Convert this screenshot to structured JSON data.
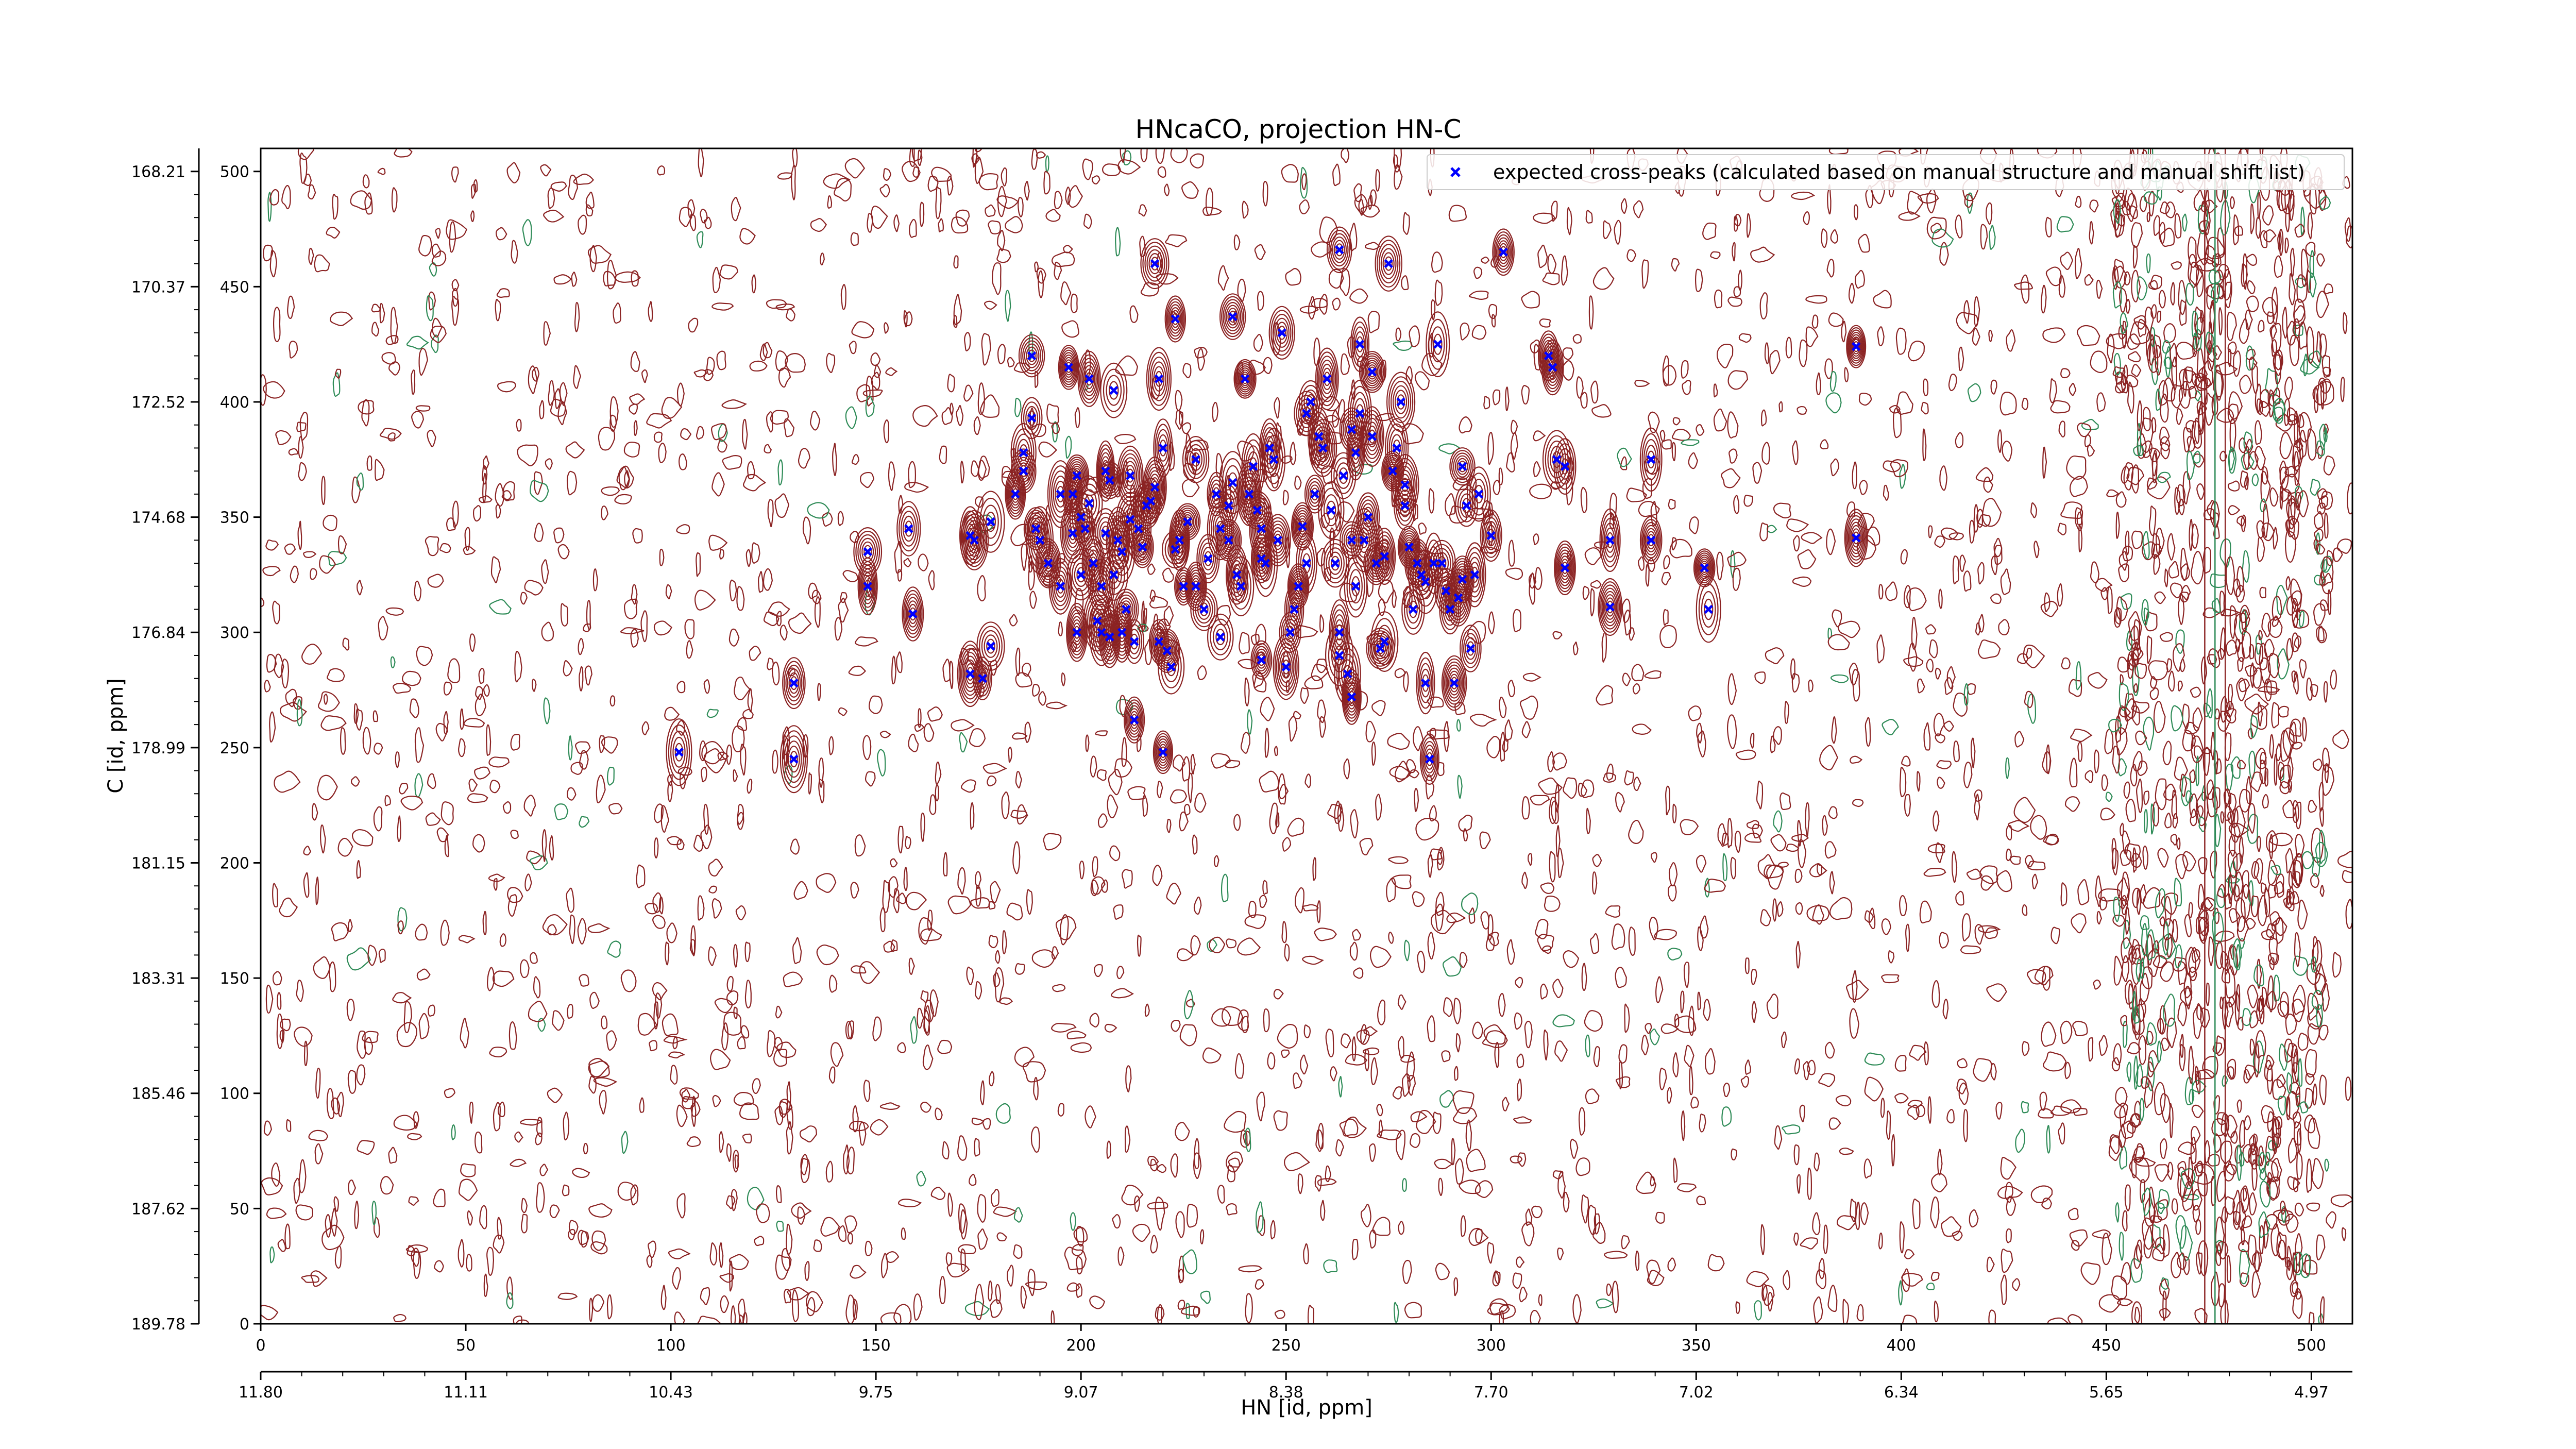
{
  "chart_data": {
    "type": "scatter",
    "title": "HNcaCO, projection HN-C",
    "xlabel": "HN [id, ppm]",
    "ylabel": "C [id, ppm]",
    "xlim": [
      0,
      510
    ],
    "ylim": [
      0,
      510
    ],
    "x_ticks_index": [
      0,
      50,
      100,
      150,
      200,
      250,
      300,
      350,
      400,
      450,
      500
    ],
    "y_ticks_index": [
      0,
      50,
      100,
      150,
      200,
      250,
      300,
      350,
      400,
      450,
      500
    ],
    "x_ticks_ppm": [
      "11.80",
      "11.11",
      "10.43",
      "9.75",
      "9.07",
      "8.38",
      "7.70",
      "7.02",
      "6.34",
      "5.65",
      "4.97"
    ],
    "y_ticks_ppm": [
      "189.78",
      "187.62",
      "185.46",
      "183.31",
      "181.15",
      "178.99",
      "176.84",
      "174.68",
      "172.52",
      "170.37",
      "168.21"
    ],
    "legend": {
      "position": "top-right",
      "entries": [
        {
          "label": "expected cross-peaks (calculated based on manual structure and manual shift list)",
          "color": "#0000ff",
          "marker": "x"
        }
      ]
    },
    "colors": {
      "positive_contours": "#8b2323",
      "negative_contours": "#2e8b57",
      "markers": "#0000ff"
    },
    "series": [
      {
        "label": "expected cross-peaks (calculated based on manual structure and manual shift list)",
        "points": [
          [
            102,
            248
          ],
          [
            130,
            245
          ],
          [
            130,
            278
          ],
          [
            148,
            335
          ],
          [
            148,
            320
          ],
          [
            158,
            345
          ],
          [
            159,
            308
          ],
          [
            173,
            342
          ],
          [
            174,
            340
          ],
          [
            173,
            282
          ],
          [
            176,
            280
          ],
          [
            178,
            294
          ],
          [
            178,
            348
          ],
          [
            184,
            360
          ],
          [
            186,
            370
          ],
          [
            186,
            378
          ],
          [
            188,
            420
          ],
          [
            188,
            393
          ],
          [
            189,
            345
          ],
          [
            190,
            340
          ],
          [
            192,
            330
          ],
          [
            195,
            360
          ],
          [
            195,
            320
          ],
          [
            197,
            415
          ],
          [
            198,
            343
          ],
          [
            198,
            360
          ],
          [
            199,
            368
          ],
          [
            199,
            300
          ],
          [
            200,
            350
          ],
          [
            200,
            325
          ],
          [
            201,
            345
          ],
          [
            202,
            356
          ],
          [
            202,
            410
          ],
          [
            203,
            330
          ],
          [
            204,
            305
          ],
          [
            205,
            320
          ],
          [
            206,
            343
          ],
          [
            206,
            370
          ],
          [
            207,
            366
          ],
          [
            207,
            298
          ],
          [
            208,
            325
          ],
          [
            208,
            405
          ],
          [
            209,
            340
          ],
          [
            210,
            335
          ],
          [
            211,
            310
          ],
          [
            212,
            349
          ],
          [
            212,
            368
          ],
          [
            213,
            296
          ],
          [
            213,
            262
          ],
          [
            214,
            345
          ],
          [
            215,
            337
          ],
          [
            216,
            355
          ],
          [
            217,
            357
          ],
          [
            218,
            363
          ],
          [
            218,
            460
          ],
          [
            219,
            410
          ],
          [
            220,
            380
          ],
          [
            220,
            248
          ],
          [
            221,
            292
          ],
          [
            222,
            285
          ],
          [
            223,
            336
          ],
          [
            224,
            340
          ],
          [
            225,
            320
          ],
          [
            226,
            348
          ],
          [
            228,
            375
          ],
          [
            230,
            310
          ],
          [
            231,
            332
          ],
          [
            233,
            360
          ],
          [
            234,
            345
          ],
          [
            236,
            355
          ],
          [
            236,
            340
          ],
          [
            237,
            437
          ],
          [
            237,
            365
          ],
          [
            238,
            325
          ],
          [
            239,
            320
          ],
          [
            240,
            410
          ],
          [
            241,
            360
          ],
          [
            242,
            372
          ],
          [
            243,
            353
          ],
          [
            244,
            345
          ],
          [
            244,
            288
          ],
          [
            245,
            330
          ],
          [
            246,
            380
          ],
          [
            247,
            375
          ],
          [
            248,
            340
          ],
          [
            249,
            430
          ],
          [
            250,
            285
          ],
          [
            251,
            300
          ],
          [
            252,
            310
          ],
          [
            253,
            320
          ],
          [
            254,
            346
          ],
          [
            255,
            395
          ],
          [
            256,
            400
          ],
          [
            257,
            360
          ],
          [
            258,
            385
          ],
          [
            259,
            380
          ],
          [
            260,
            410
          ],
          [
            261,
            353
          ],
          [
            262,
            330
          ],
          [
            263,
            300
          ],
          [
            263,
            290
          ],
          [
            264,
            368
          ],
          [
            265,
            282
          ],
          [
            266,
            340
          ],
          [
            266,
            272
          ],
          [
            267,
            320
          ],
          [
            268,
            395
          ],
          [
            268,
            425
          ],
          [
            269,
            340
          ],
          [
            270,
            350
          ],
          [
            271,
            385
          ],
          [
            272,
            330
          ],
          [
            273,
            293
          ],
          [
            274,
            333
          ],
          [
            275,
            460
          ],
          [
            276,
            370
          ],
          [
            277,
            380
          ],
          [
            278,
            400
          ],
          [
            279,
            355
          ],
          [
            280,
            337
          ],
          [
            281,
            310
          ],
          [
            282,
            330
          ],
          [
            283,
            325
          ],
          [
            284,
            278
          ],
          [
            285,
            245
          ],
          [
            286,
            330
          ],
          [
            287,
            425
          ],
          [
            288,
            330
          ],
          [
            289,
            318
          ],
          [
            290,
            310
          ],
          [
            291,
            278
          ],
          [
            292,
            315
          ],
          [
            293,
            323
          ],
          [
            294,
            355
          ],
          [
            295,
            293
          ],
          [
            296,
            325
          ],
          [
            300,
            342
          ],
          [
            303,
            465
          ],
          [
            314,
            420
          ],
          [
            315,
            415
          ],
          [
            316,
            375
          ],
          [
            318,
            372
          ],
          [
            318,
            328
          ],
          [
            329,
            340
          ],
          [
            329,
            311
          ],
          [
            339,
            375
          ],
          [
            339,
            340
          ],
          [
            352,
            328
          ],
          [
            353,
            310
          ],
          [
            389,
            424
          ],
          [
            389,
            341
          ],
          [
            263,
            466
          ],
          [
            271,
            413
          ],
          [
            223,
            436
          ],
          [
            267,
            378
          ],
          [
            266,
            388
          ],
          [
            205,
            300
          ],
          [
            219,
            296
          ],
          [
            210,
            300
          ],
          [
            228,
            320
          ],
          [
            234,
            298
          ],
          [
            244,
            332
          ],
          [
            274,
            296
          ],
          [
            255,
            330
          ],
          [
            279,
            364
          ],
          [
            284,
            322
          ],
          [
            297,
            360
          ],
          [
            293,
            372
          ]
        ]
      }
    ]
  }
}
